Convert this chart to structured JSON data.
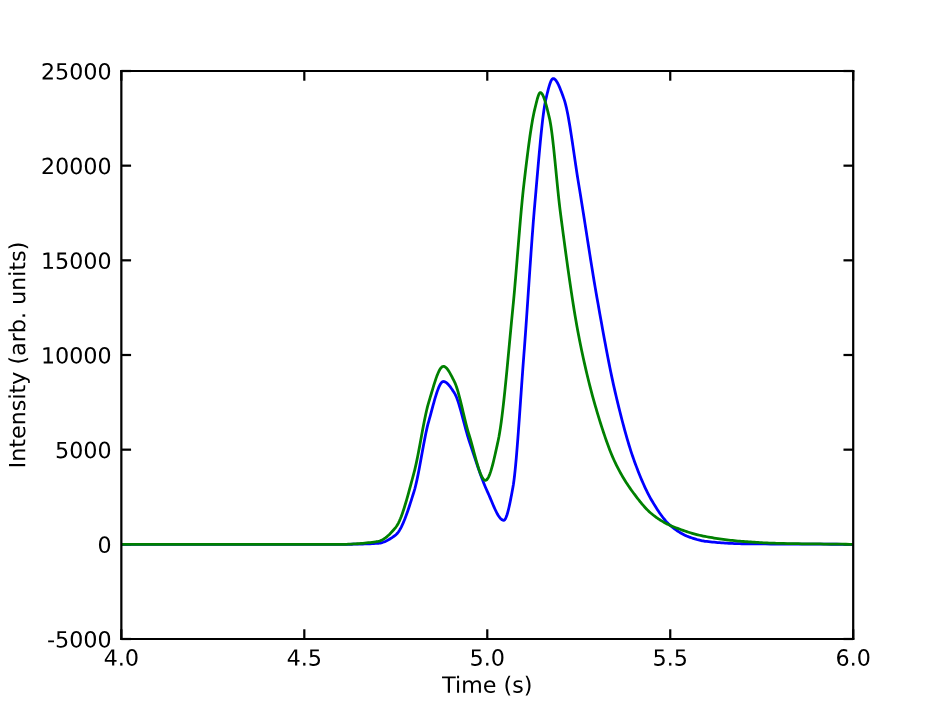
{
  "chart_data": {
    "type": "line",
    "xlabel": "Time (s)",
    "ylabel": "Intensity (arb. units)",
    "xlim": [
      4.0,
      6.0
    ],
    "xticks": [
      {
        "value": 4.0,
        "label": "4.0"
      },
      {
        "value": 4.5,
        "label": "4.5"
      },
      {
        "value": 5.0,
        "label": "5.0"
      },
      {
        "value": 5.5,
        "label": "5.5"
      },
      {
        "value": 6.0,
        "label": "6.0"
      }
    ],
    "ylim": [
      -5000,
      25000
    ],
    "yticks": [
      -5000,
      0,
      5000,
      10000,
      15000,
      20000,
      25000
    ],
    "grid": false,
    "legend": false,
    "marker": "none",
    "line_style": "solid",
    "series": [
      {
        "color": "#0000ff",
        "x": [
          4.0,
          4.6,
          4.7,
          4.75,
          4.8,
          4.84,
          4.88,
          4.91,
          4.95,
          5.0,
          5.045,
          5.07,
          5.1,
          5.13,
          5.16,
          5.18,
          5.21,
          5.25,
          5.3,
          5.35,
          5.4,
          5.45,
          5.5,
          5.55,
          5.6,
          5.7,
          6.0
        ],
        "values": [
          0,
          0,
          50,
          500,
          2800,
          6500,
          8600,
          8000,
          5500,
          2800,
          1270,
          3000,
          10000,
          18000,
          23500,
          24600,
          23500,
          19000,
          13000,
          8000,
          4500,
          2300,
          1000,
          400,
          150,
          30,
          0
        ]
      },
      {
        "color": "#008000",
        "x": [
          4.0,
          4.6,
          4.7,
          4.75,
          4.8,
          4.84,
          4.88,
          4.91,
          4.95,
          4.995,
          5.03,
          5.07,
          5.1,
          5.13,
          5.145,
          5.17,
          5.2,
          5.25,
          5.3,
          5.35,
          5.4,
          5.45,
          5.5,
          5.6,
          5.7,
          5.8,
          6.0
        ],
        "values": [
          0,
          0,
          150,
          900,
          3800,
          7500,
          9400,
          8600,
          5800,
          3380,
          5500,
          12500,
          19000,
          23000,
          23860,
          22500,
          17500,
          11000,
          7000,
          4300,
          2700,
          1600,
          1000,
          400,
          150,
          50,
          0
        ]
      }
    ]
  }
}
